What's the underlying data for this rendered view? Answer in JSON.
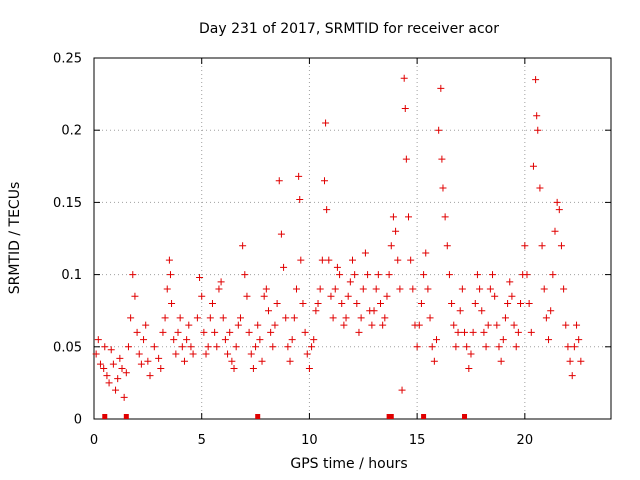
{
  "chart_data": {
    "type": "scatter",
    "title": "Day 231 of 2017, SRMTID for receiver acor",
    "xlabel": "GPS time / hours",
    "ylabel": "SRMTID / TECUs",
    "xlim": [
      0,
      24
    ],
    "ylim": [
      0,
      0.25
    ],
    "x_ticks": [
      0,
      5,
      10,
      15,
      20
    ],
    "x_tick_labels": [
      "0",
      "5",
      "10",
      "15",
      "20"
    ],
    "y_ticks": [
      0,
      0.05,
      0.1,
      0.15,
      0.2,
      0.25
    ],
    "y_tick_labels": [
      "0",
      "0.05",
      "0.1",
      "0.15",
      "0.2",
      "0.25"
    ],
    "grid": true,
    "marker": "plus",
    "color": "#e00000",
    "series": [
      {
        "name": "SRMTID",
        "points": [
          [
            0.1,
            0.045
          ],
          [
            0.2,
            0.055
          ],
          [
            0.3,
            0.038
          ],
          [
            0.45,
            0.035
          ],
          [
            0.5,
            0.05
          ],
          [
            0.6,
            0.03
          ],
          [
            0.7,
            0.025
          ],
          [
            0.8,
            0.048
          ],
          [
            0.9,
            0.038
          ],
          [
            1.0,
            0.02
          ],
          [
            1.1,
            0.028
          ],
          [
            1.2,
            0.042
          ],
          [
            1.3,
            0.035
          ],
          [
            1.4,
            0.015
          ],
          [
            1.5,
            0.032
          ],
          [
            1.6,
            0.05
          ],
          [
            1.7,
            0.07
          ],
          [
            1.8,
            0.1
          ],
          [
            1.9,
            0.085
          ],
          [
            2.0,
            0.06
          ],
          [
            2.1,
            0.045
          ],
          [
            2.2,
            0.038
          ],
          [
            2.3,
            0.055
          ],
          [
            2.4,
            0.065
          ],
          [
            2.5,
            0.04
          ],
          [
            2.6,
            0.03
          ],
          [
            2.8,
            0.05
          ],
          [
            3.0,
            0.042
          ],
          [
            3.1,
            0.035
          ],
          [
            3.2,
            0.06
          ],
          [
            3.3,
            0.07
          ],
          [
            3.4,
            0.09
          ],
          [
            3.5,
            0.11
          ],
          [
            3.55,
            0.1
          ],
          [
            3.6,
            0.08
          ],
          [
            3.7,
            0.055
          ],
          [
            3.8,
            0.045
          ],
          [
            3.9,
            0.06
          ],
          [
            4.0,
            0.07
          ],
          [
            4.1,
            0.05
          ],
          [
            4.2,
            0.04
          ],
          [
            4.3,
            0.055
          ],
          [
            4.4,
            0.065
          ],
          [
            4.5,
            0.05
          ],
          [
            4.6,
            0.045
          ],
          [
            4.8,
            0.07
          ],
          [
            4.9,
            0.098
          ],
          [
            5.0,
            0.085
          ],
          [
            5.1,
            0.06
          ],
          [
            5.2,
            0.045
          ],
          [
            5.3,
            0.05
          ],
          [
            5.4,
            0.07
          ],
          [
            5.5,
            0.08
          ],
          [
            5.6,
            0.06
          ],
          [
            5.7,
            0.05
          ],
          [
            5.8,
            0.09
          ],
          [
            5.9,
            0.095
          ],
          [
            6.0,
            0.07
          ],
          [
            6.1,
            0.055
          ],
          [
            6.2,
            0.045
          ],
          [
            6.3,
            0.06
          ],
          [
            6.4,
            0.04
          ],
          [
            6.5,
            0.035
          ],
          [
            6.6,
            0.05
          ],
          [
            6.7,
            0.065
          ],
          [
            6.8,
            0.07
          ],
          [
            6.9,
            0.12
          ],
          [
            7.0,
            0.1
          ],
          [
            7.1,
            0.085
          ],
          [
            7.2,
            0.06
          ],
          [
            7.3,
            0.045
          ],
          [
            7.4,
            0.035
          ],
          [
            7.5,
            0.05
          ],
          [
            7.6,
            0.065
          ],
          [
            7.7,
            0.055
          ],
          [
            7.8,
            0.04
          ],
          [
            7.9,
            0.085
          ],
          [
            8.0,
            0.09
          ],
          [
            8.1,
            0.075
          ],
          [
            8.2,
            0.06
          ],
          [
            8.3,
            0.05
          ],
          [
            8.4,
            0.065
          ],
          [
            8.5,
            0.08
          ],
          [
            8.6,
            0.165
          ],
          [
            8.7,
            0.128
          ],
          [
            8.8,
            0.105
          ],
          [
            8.9,
            0.07
          ],
          [
            9.0,
            0.05
          ],
          [
            9.1,
            0.04
          ],
          [
            9.2,
            0.055
          ],
          [
            9.3,
            0.07
          ],
          [
            9.4,
            0.09
          ],
          [
            9.5,
            0.168
          ],
          [
            9.55,
            0.152
          ],
          [
            9.6,
            0.11
          ],
          [
            9.7,
            0.08
          ],
          [
            9.8,
            0.06
          ],
          [
            9.9,
            0.045
          ],
          [
            10.0,
            0.035
          ],
          [
            10.1,
            0.05
          ],
          [
            10.2,
            0.055
          ],
          [
            10.3,
            0.075
          ],
          [
            10.4,
            0.08
          ],
          [
            10.5,
            0.09
          ],
          [
            10.6,
            0.11
          ],
          [
            10.7,
            0.165
          ],
          [
            10.75,
            0.205
          ],
          [
            10.8,
            0.145
          ],
          [
            10.9,
            0.11
          ],
          [
            11.0,
            0.085
          ],
          [
            11.1,
            0.07
          ],
          [
            11.2,
            0.09
          ],
          [
            11.3,
            0.105
          ],
          [
            11.4,
            0.1
          ],
          [
            11.5,
            0.08
          ],
          [
            11.6,
            0.065
          ],
          [
            11.7,
            0.07
          ],
          [
            11.8,
            0.085
          ],
          [
            11.9,
            0.095
          ],
          [
            12.0,
            0.11
          ],
          [
            12.1,
            0.1
          ],
          [
            12.2,
            0.08
          ],
          [
            12.3,
            0.06
          ],
          [
            12.4,
            0.07
          ],
          [
            12.5,
            0.09
          ],
          [
            12.6,
            0.115
          ],
          [
            12.7,
            0.1
          ],
          [
            12.8,
            0.075
          ],
          [
            12.9,
            0.065
          ],
          [
            13.0,
            0.075
          ],
          [
            13.1,
            0.09
          ],
          [
            13.2,
            0.1
          ],
          [
            13.3,
            0.08
          ],
          [
            13.4,
            0.065
          ],
          [
            13.5,
            0.07
          ],
          [
            13.6,
            0.085
          ],
          [
            13.7,
            0.1
          ],
          [
            13.8,
            0.12
          ],
          [
            13.9,
            0.14
          ],
          [
            14.0,
            0.13
          ],
          [
            14.1,
            0.11
          ],
          [
            14.2,
            0.09
          ],
          [
            14.3,
            0.02
          ],
          [
            14.4,
            0.236
          ],
          [
            14.45,
            0.215
          ],
          [
            14.5,
            0.18
          ],
          [
            14.6,
            0.14
          ],
          [
            14.7,
            0.11
          ],
          [
            14.8,
            0.09
          ],
          [
            14.9,
            0.065
          ],
          [
            15.0,
            0.05
          ],
          [
            15.1,
            0.065
          ],
          [
            15.2,
            0.08
          ],
          [
            15.3,
            0.1
          ],
          [
            15.4,
            0.115
          ],
          [
            15.5,
            0.09
          ],
          [
            15.6,
            0.07
          ],
          [
            15.7,
            0.05
          ],
          [
            15.8,
            0.04
          ],
          [
            15.9,
            0.055
          ],
          [
            16.0,
            0.2
          ],
          [
            16.1,
            0.229
          ],
          [
            16.15,
            0.18
          ],
          [
            16.2,
            0.16
          ],
          [
            16.3,
            0.14
          ],
          [
            16.4,
            0.12
          ],
          [
            16.5,
            0.1
          ],
          [
            16.6,
            0.08
          ],
          [
            16.7,
            0.065
          ],
          [
            16.8,
            0.05
          ],
          [
            16.9,
            0.06
          ],
          [
            17.0,
            0.075
          ],
          [
            17.1,
            0.09
          ],
          [
            17.2,
            0.06
          ],
          [
            17.3,
            0.05
          ],
          [
            17.4,
            0.035
          ],
          [
            17.5,
            0.045
          ],
          [
            17.6,
            0.06
          ],
          [
            17.7,
            0.08
          ],
          [
            17.8,
            0.1
          ],
          [
            17.9,
            0.09
          ],
          [
            18.0,
            0.075
          ],
          [
            18.1,
            0.06
          ],
          [
            18.2,
            0.05
          ],
          [
            18.3,
            0.065
          ],
          [
            18.4,
            0.09
          ],
          [
            18.5,
            0.1
          ],
          [
            18.6,
            0.085
          ],
          [
            18.7,
            0.065
          ],
          [
            18.8,
            0.05
          ],
          [
            18.9,
            0.04
          ],
          [
            19.0,
            0.055
          ],
          [
            19.1,
            0.07
          ],
          [
            19.2,
            0.08
          ],
          [
            19.3,
            0.095
          ],
          [
            19.4,
            0.085
          ],
          [
            19.5,
            0.065
          ],
          [
            19.6,
            0.05
          ],
          [
            19.7,
            0.06
          ],
          [
            19.8,
            0.08
          ],
          [
            19.9,
            0.1
          ],
          [
            20.0,
            0.12
          ],
          [
            20.1,
            0.1
          ],
          [
            20.2,
            0.08
          ],
          [
            20.3,
            0.06
          ],
          [
            20.4,
            0.175
          ],
          [
            20.5,
            0.235
          ],
          [
            20.55,
            0.21
          ],
          [
            20.6,
            0.2
          ],
          [
            20.7,
            0.16
          ],
          [
            20.8,
            0.12
          ],
          [
            20.9,
            0.09
          ],
          [
            21.0,
            0.07
          ],
          [
            21.1,
            0.055
          ],
          [
            21.2,
            0.075
          ],
          [
            21.3,
            0.1
          ],
          [
            21.4,
            0.13
          ],
          [
            21.5,
            0.15
          ],
          [
            21.6,
            0.145
          ],
          [
            21.7,
            0.12
          ],
          [
            21.8,
            0.09
          ],
          [
            21.9,
            0.065
          ],
          [
            22.0,
            0.05
          ],
          [
            22.1,
            0.04
          ],
          [
            22.2,
            0.03
          ],
          [
            22.3,
            0.05
          ],
          [
            22.4,
            0.065
          ],
          [
            22.5,
            0.055
          ],
          [
            22.6,
            0.04
          ]
        ]
      }
    ],
    "bottom_markers_x": [
      0.5,
      1.5,
      7.6,
      13.7,
      13.8,
      15.3,
      17.2
    ]
  }
}
